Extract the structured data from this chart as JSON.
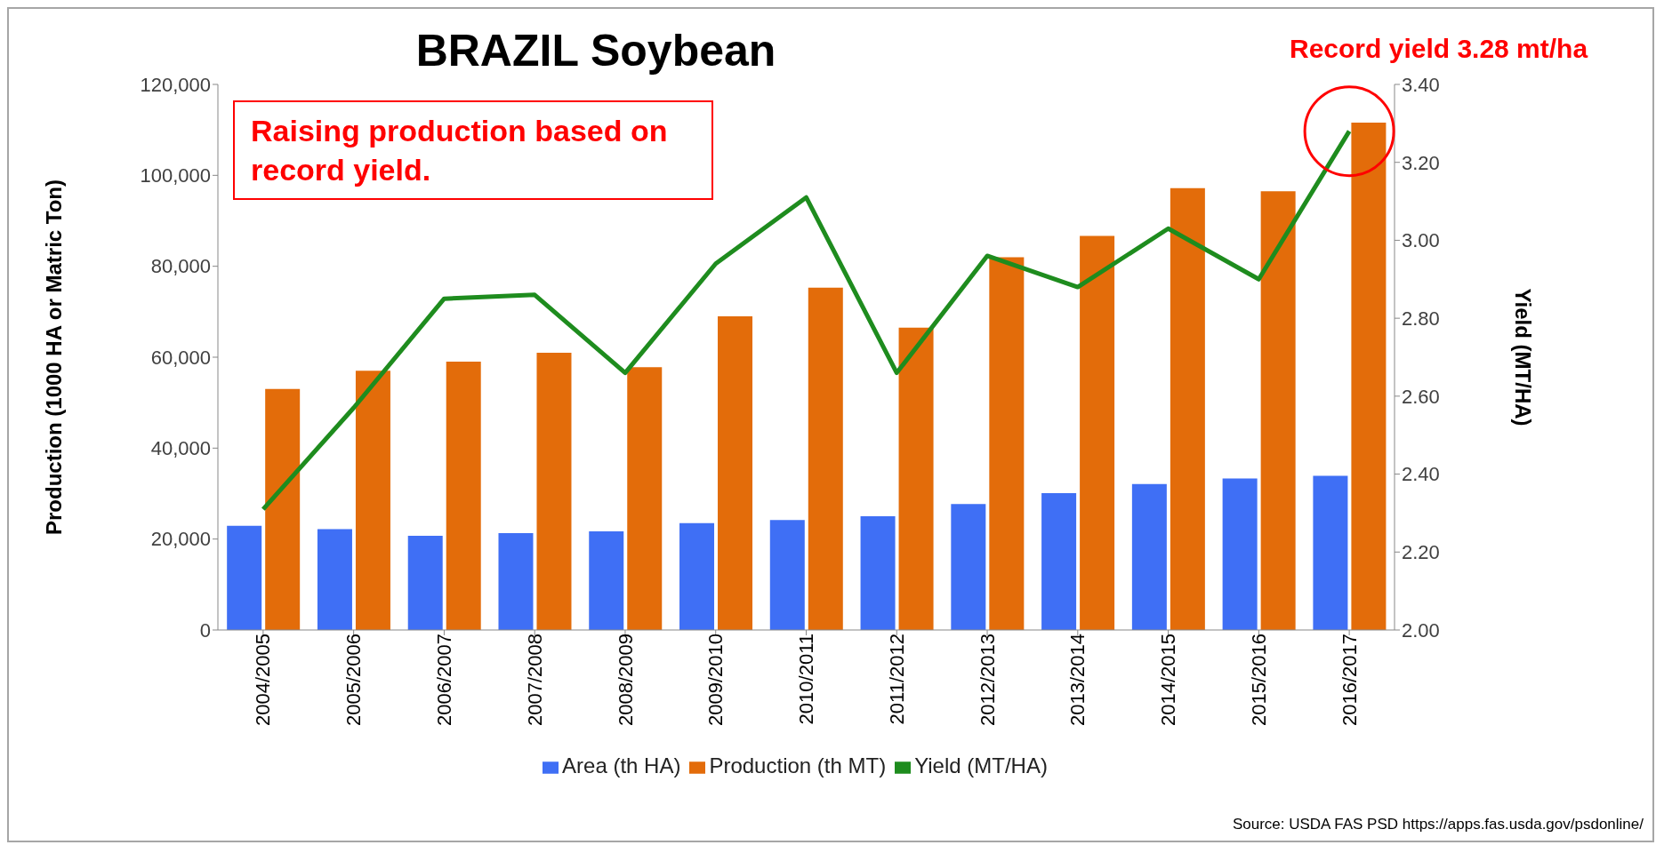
{
  "chart_data": {
    "type": "bar",
    "title": "BRAZIL Soybean",
    "ylabel": "Production (1000 HA or Matric Ton)",
    "y2label": "Yield (MT/HA)",
    "categories": [
      "2004/2005",
      "2005/2006",
      "2006/2007",
      "2007/2008",
      "2008/2009",
      "2009/2010",
      "2010/2011",
      "2011/2012",
      "2012/2013",
      "2013/2014",
      "2014/2015",
      "2015/2016",
      "2016/2017"
    ],
    "series": [
      {
        "name": "Area (th HA)",
        "color": "#3f6ff5",
        "values": [
          22900,
          22200,
          20700,
          21300,
          21700,
          23500,
          24200,
          25000,
          27700,
          30100,
          32100,
          33300,
          33900
        ]
      },
      {
        "name": "Production (th MT)",
        "color": "#e36c0a",
        "values": [
          53000,
          57000,
          59000,
          61000,
          57800,
          69000,
          75300,
          66500,
          82000,
          86700,
          97200,
          96500,
          111600
        ]
      },
      {
        "name": "Yield (MT/HA)",
        "type": "line",
        "axis": "y2",
        "color": "#1e8c1e",
        "values": [
          2.31,
          2.57,
          2.85,
          2.86,
          2.66,
          2.94,
          3.11,
          2.66,
          2.96,
          2.88,
          3.03,
          2.9,
          3.28
        ]
      }
    ],
    "ylim": [
      0,
      120000
    ],
    "yticks": [
      {
        "value": 0,
        "label": "0"
      },
      {
        "value": 20000,
        "label": "20,000"
      },
      {
        "value": 40000,
        "label": "40,000"
      },
      {
        "value": 60000,
        "label": "60,000"
      },
      {
        "value": 80000,
        "label": "80,000"
      },
      {
        "value": 100000,
        "label": "100,000"
      },
      {
        "value": 120000,
        "label": "120,000"
      }
    ],
    "y2lim": [
      2.0,
      3.4
    ],
    "y2ticks": [
      {
        "value": 2.0,
        "label": "2.00"
      },
      {
        "value": 2.2,
        "label": "2.20"
      },
      {
        "value": 2.4,
        "label": "2.40"
      },
      {
        "value": 2.6,
        "label": "2.60"
      },
      {
        "value": 2.8,
        "label": "2.80"
      },
      {
        "value": 3.0,
        "label": "3.00"
      },
      {
        "value": 3.2,
        "label": "3.20"
      },
      {
        "value": 3.4,
        "label": "3.40"
      }
    ],
    "grid": false,
    "legend": "bottom",
    "marker": "none",
    "annotations": [
      "Raising production based on record yield.",
      "Record yield 3.28 mt/ha",
      "Source: USDA FAS PSD https://apps.fas.usda.gov/psdonline/"
    ]
  }
}
